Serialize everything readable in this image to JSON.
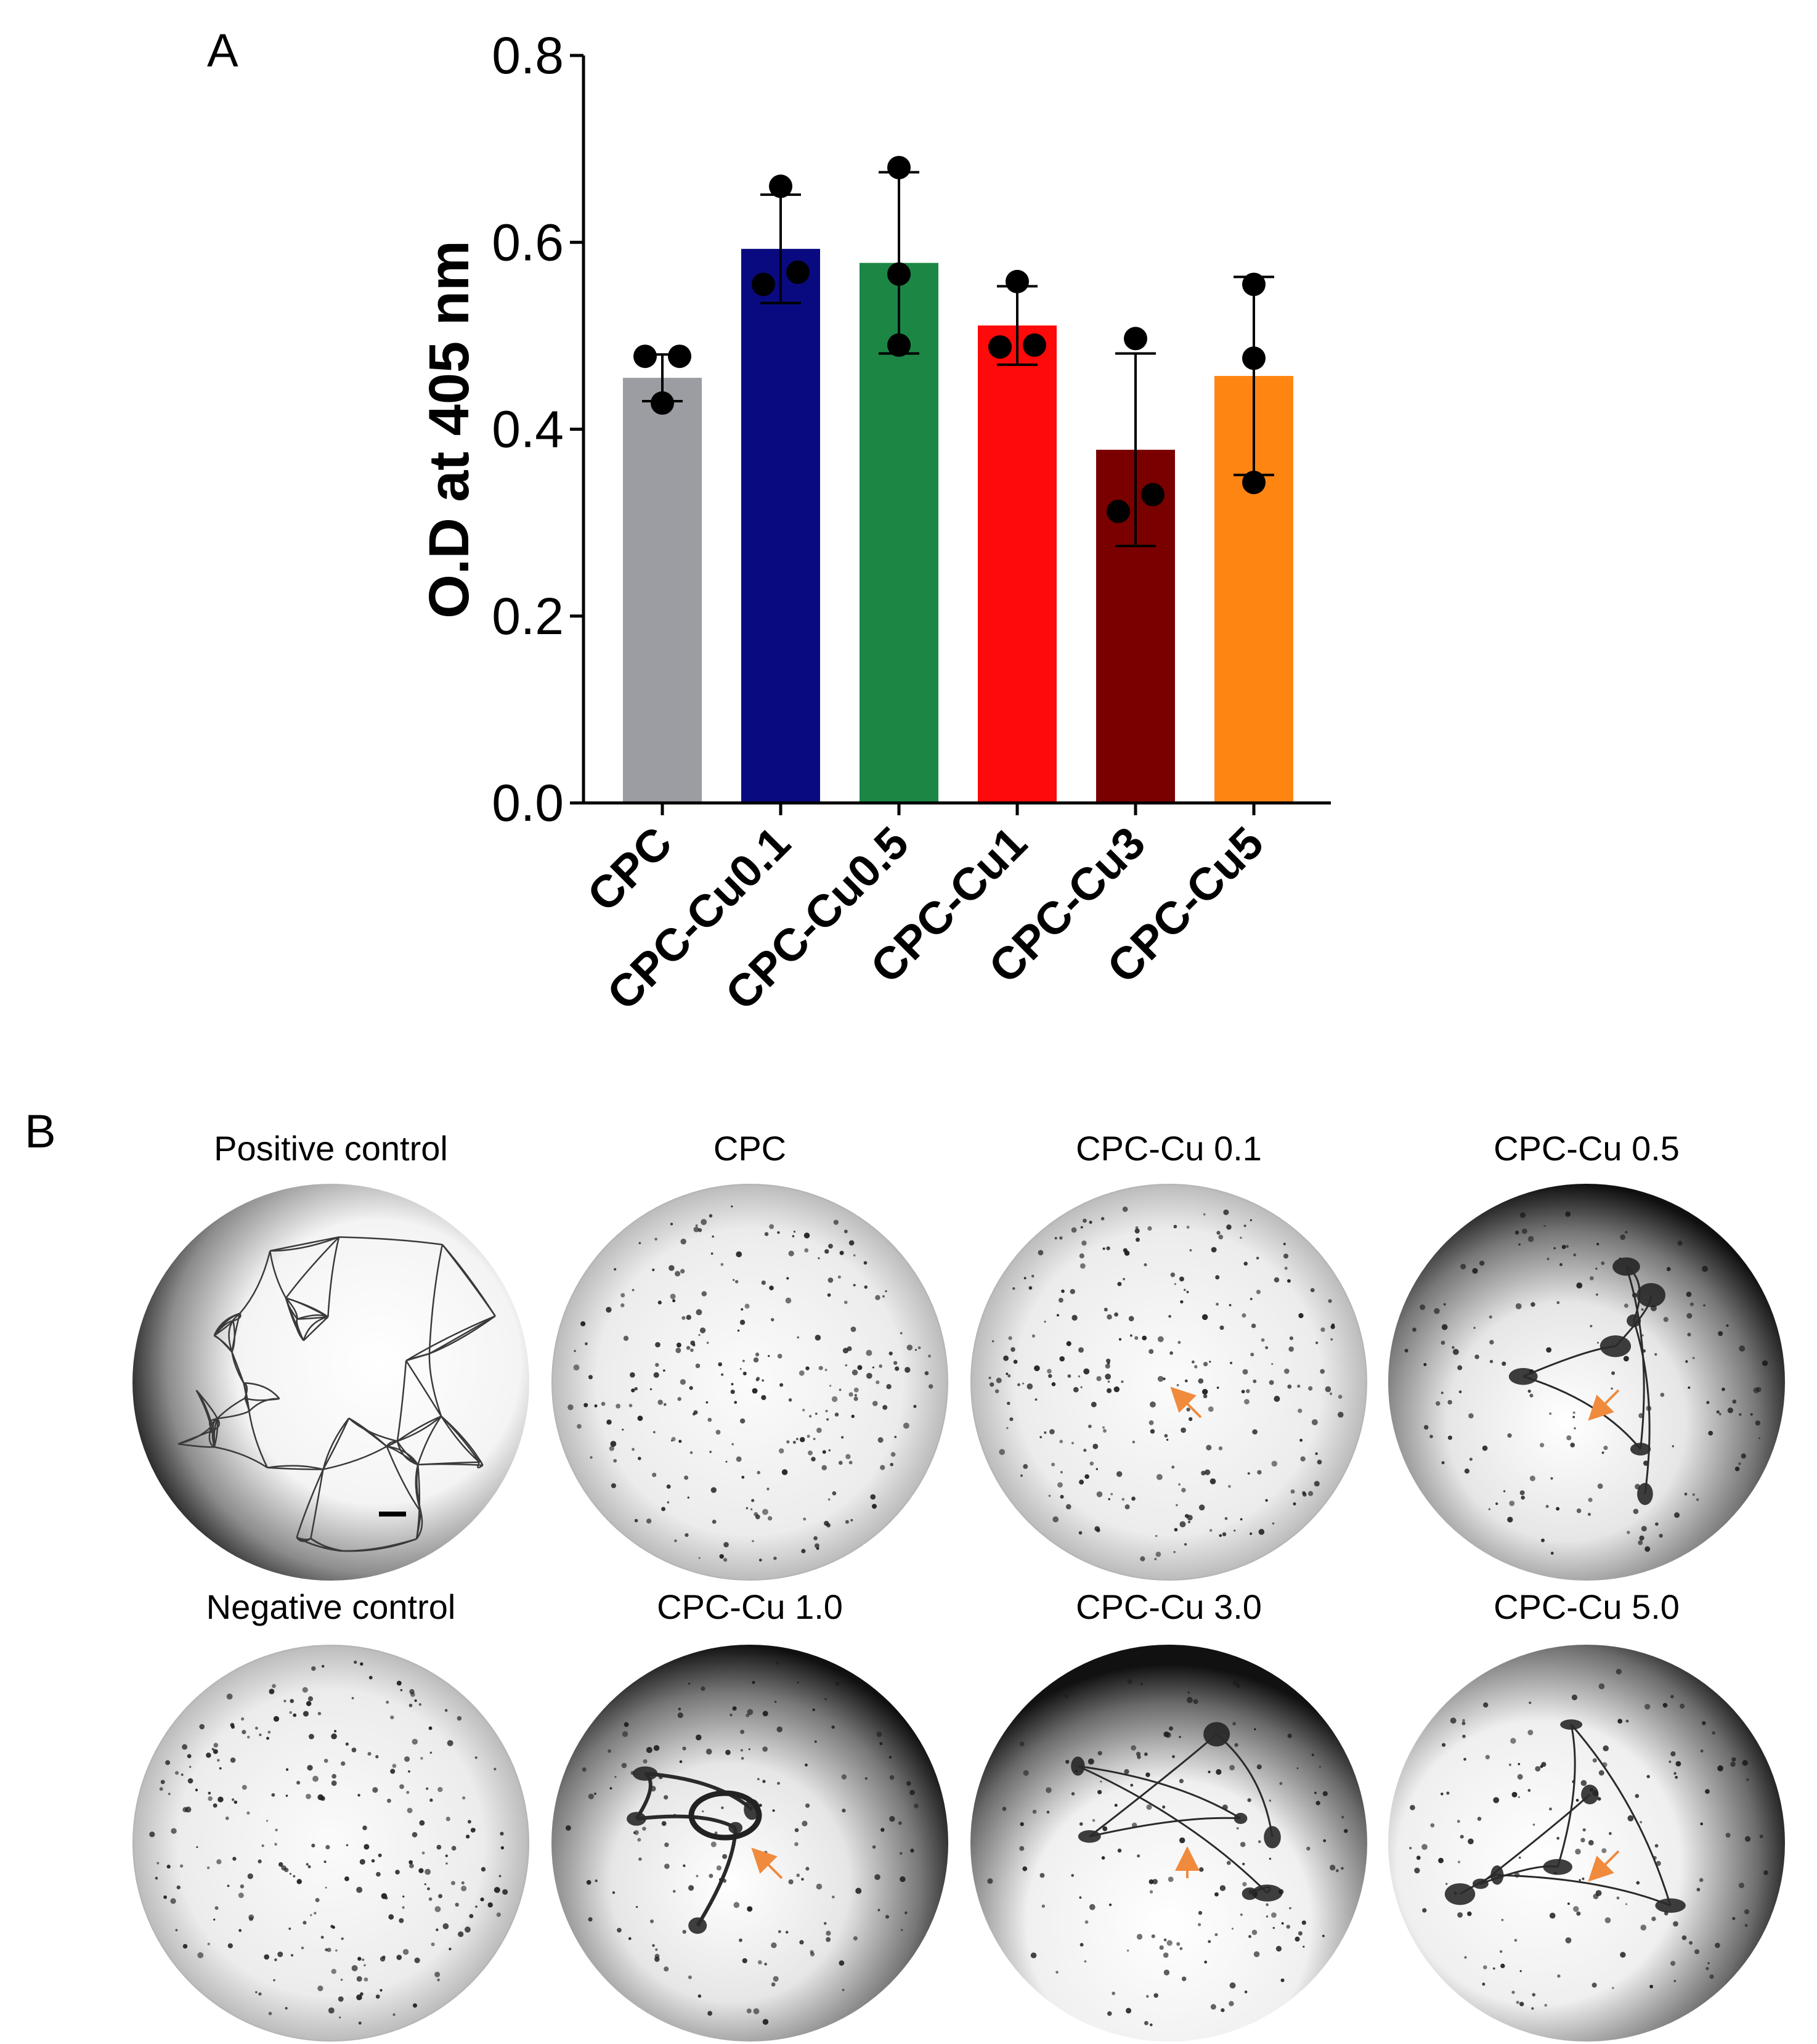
{
  "panel_a_letter": "A",
  "panel_b_letter": "B",
  "chart_data": {
    "type": "bar",
    "categories": [
      "CPC",
      "CPC-Cu0.1",
      "CPC-Cu0.5",
      "CPC-Cu1",
      "CPC-Cu3",
      "CPC-Cu5"
    ],
    "values": [
      0.455,
      0.593,
      0.578,
      0.511,
      0.378,
      0.457
    ],
    "error": [
      0.025,
      0.058,
      0.097,
      0.042,
      0.103,
      0.106
    ],
    "points": [
      [
        0.478,
        0.478,
        0.428
      ],
      [
        0.66,
        0.555,
        0.568
      ],
      [
        0.68,
        0.566,
        0.49
      ],
      [
        0.558,
        0.488,
        0.49
      ],
      [
        0.497,
        0.312,
        0.33
      ],
      [
        0.555,
        0.476,
        0.343
      ]
    ],
    "colors": [
      "#9c9ca3",
      "#0a0a80",
      "#1c8745",
      "#ff0a0a",
      "#7a0000",
      "#ff8513"
    ],
    "ylabel": "O.D at 405 nm",
    "xlabel": "",
    "ylim": [
      0,
      0.8
    ],
    "yticks": [
      "0.0",
      "0.2",
      "0.4",
      "0.6",
      "0.8"
    ],
    "grid": false
  },
  "panel_b": {
    "wells": [
      {
        "title": "Positive control",
        "kind": "network",
        "edge": "left",
        "arrows": []
      },
      {
        "title": "CPC",
        "kind": "dots",
        "edge": "soft",
        "arrows": []
      },
      {
        "title": "CPC-Cu 0.1",
        "kind": "dots",
        "edge": "soft",
        "arrows": [
          "up-left"
        ]
      },
      {
        "title": "CPC-Cu 0.5",
        "kind": "clusters",
        "edge": "dark",
        "arrows": [
          "down-left"
        ]
      },
      {
        "title": "Negative control",
        "kind": "dots",
        "edge": "soft",
        "arrows": []
      },
      {
        "title": "CPC-Cu 1.0",
        "kind": "tube",
        "edge": "dark",
        "arrows": [
          "up-left"
        ]
      },
      {
        "title": "CPC-Cu 3.0",
        "kind": "clusters",
        "edge": "top",
        "arrows": [
          "up"
        ]
      },
      {
        "title": "CPC-Cu 5.0",
        "kind": "clusters",
        "edge": "right",
        "arrows": [
          "down-left"
        ]
      }
    ],
    "arrow_color": "#f08a3c"
  }
}
